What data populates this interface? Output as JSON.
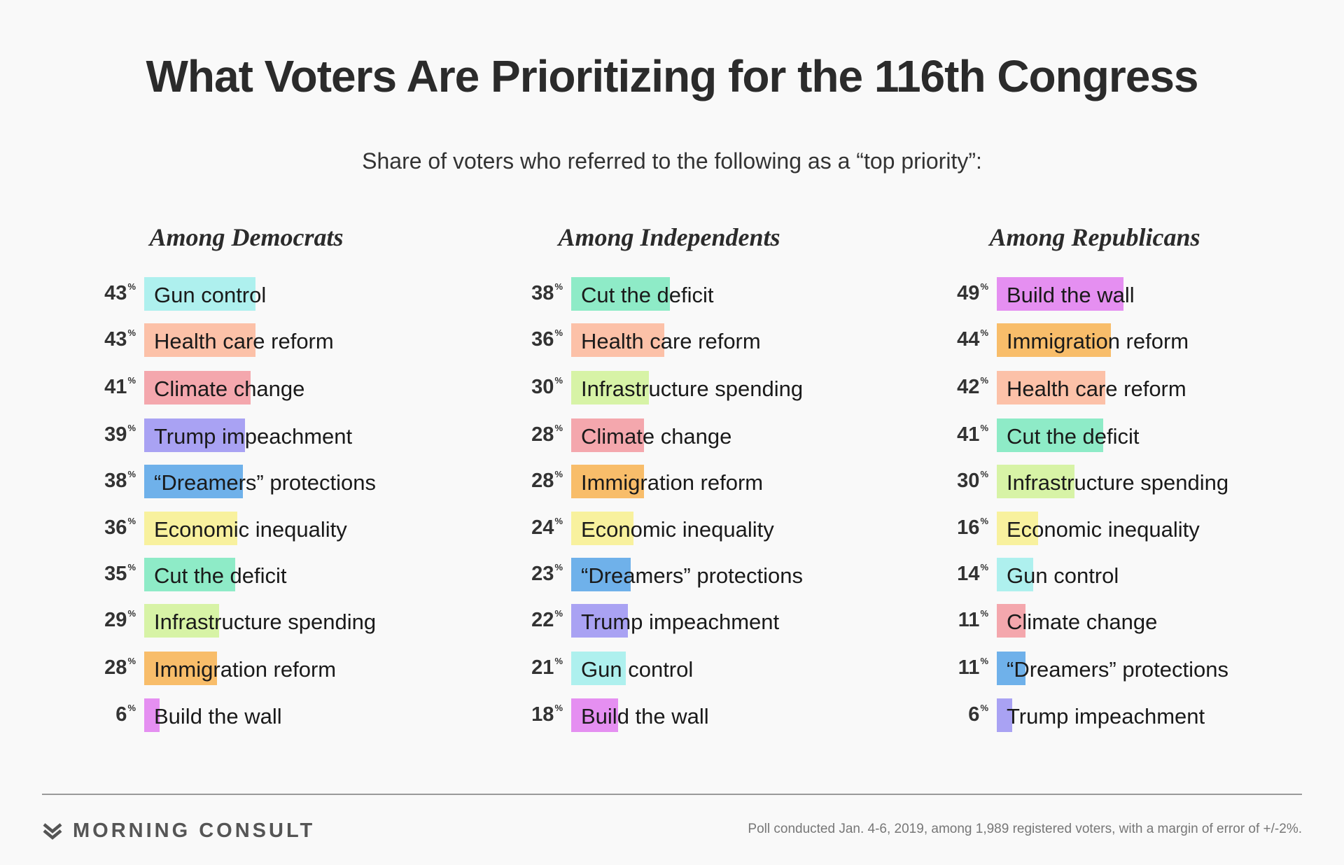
{
  "title": "What Voters Are Prioritizing for the 116th Congress",
  "subtitle": "Share of voters who referred to the following as a “top priority”:",
  "percent_symbol": "%",
  "colors": {
    "Gun control": "#aef0ee",
    "Health care reform": "#fcc1a8",
    "Climate change": "#f4a7ad",
    "Trump impeachment": "#a9a2f3",
    "“Dreamers” protections": "#6fb1ea",
    "Economic inequality": "#f8f19e",
    "Cut the deficit": "#8eebc7",
    "Infrastructure spending": "#d7f3a6",
    "Immigration reform": "#f8bd6a",
    "Build the wall": "#e58ff1"
  },
  "chart_data": [
    {
      "type": "bar",
      "title": "Among Democrats",
      "categories": [
        "Gun control",
        "Health care reform",
        "Climate change",
        "Trump impeachment",
        "“Dreamers” protections",
        "Economic inequality",
        "Cut the deficit",
        "Infrastructure spending",
        "Immigration reform",
        "Build the wall"
      ],
      "values": [
        43,
        43,
        41,
        39,
        38,
        36,
        35,
        29,
        28,
        6
      ]
    },
    {
      "type": "bar",
      "title": "Among Independents",
      "categories": [
        "Cut the deficit",
        "Health care reform",
        "Infrastructure spending",
        "Climate change",
        "Immigration reform",
        "Economic inequality",
        "“Dreamers” protections",
        "Trump impeachment",
        "Gun control",
        "Build the wall"
      ],
      "values": [
        38,
        36,
        30,
        28,
        28,
        24,
        23,
        22,
        21,
        18
      ]
    },
    {
      "type": "bar",
      "title": "Among Republicans",
      "categories": [
        "Build the wall",
        "Immigration reform",
        "Health care reform",
        "Cut the deficit",
        "Infrastructure spending",
        "Economic inequality",
        "Gun control",
        "Climate change",
        "“Dreamers” protections",
        "Trump impeachment"
      ],
      "values": [
        49,
        44,
        42,
        41,
        30,
        16,
        14,
        11,
        11,
        6
      ]
    }
  ],
  "footer": {
    "brand": "MORNING CONSULT",
    "note": "Poll conducted Jan. 4-6, 2019, among 1,989 registered voters, with a margin of error of +/-2%."
  }
}
